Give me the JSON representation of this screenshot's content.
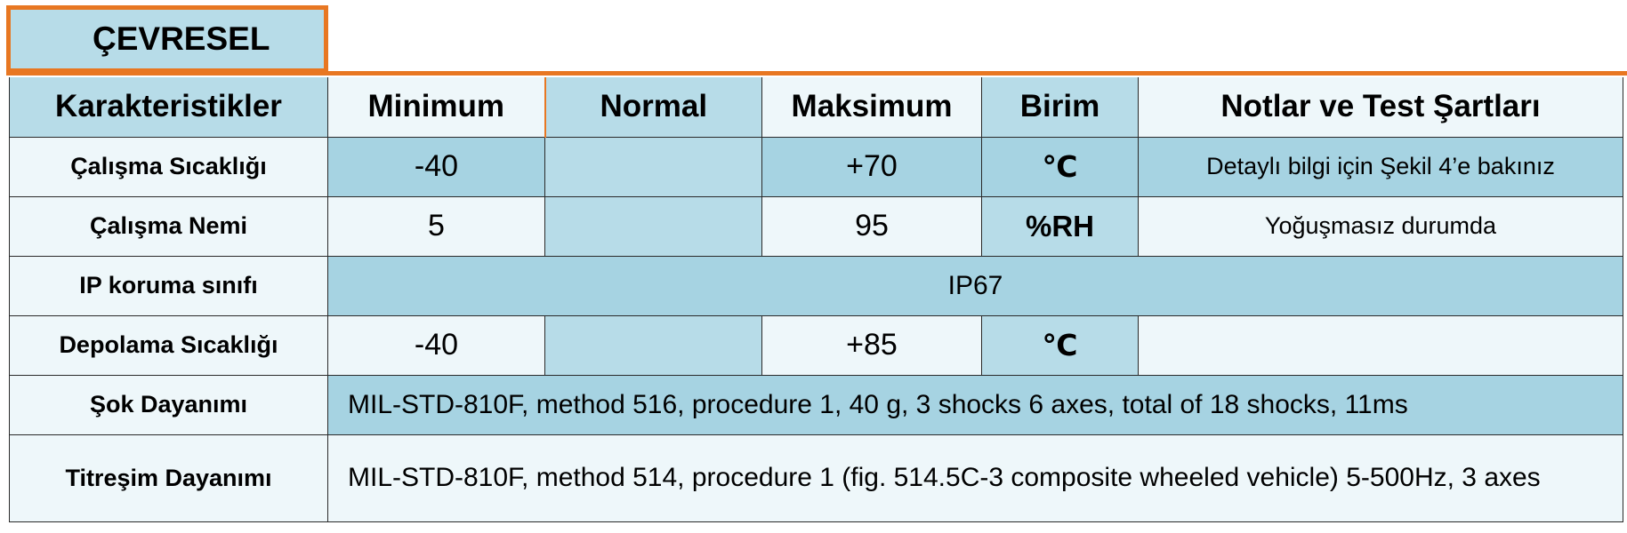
{
  "section": {
    "title": "ÇEVRESEL"
  },
  "table": {
    "headers": {
      "characteristic": "Karakteristikler",
      "minimum": "Minimum",
      "normal": "Normal",
      "maximum": "Maksimum",
      "unit": "Birim",
      "notes": "Notlar ve Test Şartları"
    },
    "rows": [
      {
        "label": "Çalışma Sıcaklığı",
        "min": "-40",
        "normal": "",
        "max": "+70",
        "unit": "℃",
        "notes": "Detaylı bilgi için Şekil 4’e bakınız"
      },
      {
        "label": "Çalışma Nemi",
        "min": "5",
        "normal": "",
        "max": "95",
        "unit": "%RH",
        "notes": "Yoğuşmasız durumda"
      },
      {
        "label": "IP koruma sınıfı",
        "value": "IP67"
      },
      {
        "label": "Depolama Sıcaklığı",
        "min": "-40",
        "normal": "",
        "max": "+85",
        "unit": "℃",
        "notes": ""
      },
      {
        "label": "Şok Dayanımı",
        "value": "MIL-STD-810F, method 516, procedure 1, 40 g, 3 shocks 6 axes, total of 18 shocks, 11ms"
      },
      {
        "label": "Titreşim Dayanımı",
        "value": "MIL-STD-810F, method 514, procedure 1 (fig. 514.5C-3 composite wheeled vehicle) 5-500Hz, 3 axes"
      }
    ]
  }
}
